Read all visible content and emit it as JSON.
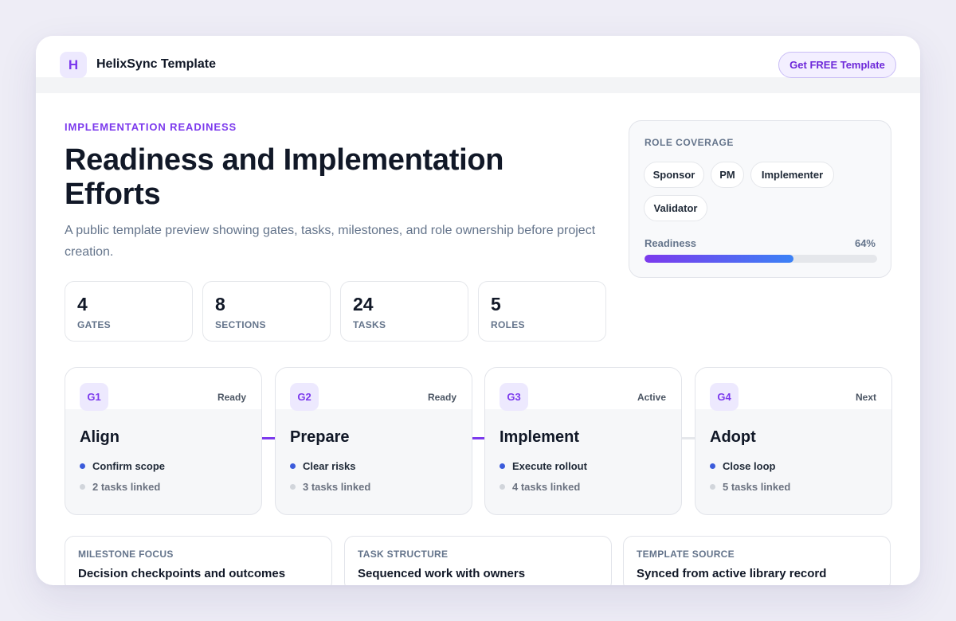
{
  "header": {
    "logo_letter": "H",
    "brand": "HelixSync Template",
    "cta_label": "Get FREE Template"
  },
  "hero": {
    "eyebrow": "IMPLEMENTATION READINESS",
    "title": "Readiness and Implementation Efforts",
    "subtitle": "A public template preview showing gates, tasks, milestones, and role ownership before project creation."
  },
  "stats": [
    {
      "value": "4",
      "label": "GATES"
    },
    {
      "value": "8",
      "label": "SECTIONS"
    },
    {
      "value": "24",
      "label": "TASKS"
    },
    {
      "value": "5",
      "label": "ROLES"
    }
  ],
  "coverage": {
    "title": "ROLE COVERAGE",
    "roles": [
      "Sponsor",
      "PM",
      "Implementer",
      "Validator"
    ],
    "readiness_label": "Readiness",
    "readiness_value": "64%",
    "readiness_fraction": 0.64
  },
  "gates": [
    {
      "badge": "G1",
      "status": "Ready",
      "name": "Align",
      "task": "Confirm scope",
      "linked": "2 tasks linked"
    },
    {
      "badge": "G2",
      "status": "Ready",
      "name": "Prepare",
      "task": "Clear risks",
      "linked": "3 tasks linked"
    },
    {
      "badge": "G3",
      "status": "Active",
      "name": "Implement",
      "task": "Execute rollout",
      "linked": "4 tasks linked"
    },
    {
      "badge": "G4",
      "status": "Next",
      "name": "Adopt",
      "task": "Close loop",
      "linked": "5 tasks linked"
    }
  ],
  "info_cards": [
    {
      "label": "MILESTONE FOCUS",
      "text": "Decision checkpoints and outcomes"
    },
    {
      "label": "TASK STRUCTURE",
      "text": "Sequenced work with owners"
    },
    {
      "label": "TEMPLATE SOURCE",
      "text": "Synced from active library record"
    }
  ],
  "colors": {
    "accent": "#7c3aed",
    "task_dot": "#3b5bdb",
    "linked_dot": "#d1d5db",
    "connector_active": "#7c3aed",
    "connector_inactive": "#e5e7eb"
  }
}
